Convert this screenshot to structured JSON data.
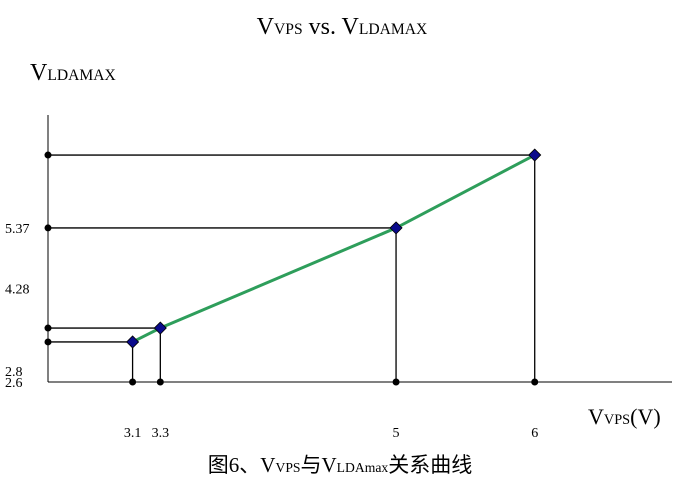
{
  "chart_data": {
    "type": "line",
    "title_parts": [
      "V",
      "VPS",
      " vs. V",
      "LDAMAX"
    ],
    "y_label_parts": [
      "V",
      "LDAMAX"
    ],
    "x_label_parts": [
      "V",
      "VPS",
      "(V)"
    ],
    "caption_parts": [
      "图6、V",
      "VPS",
      "与V",
      "LDAmax",
      "关系曲线"
    ],
    "x": [
      3.1,
      3.3,
      5,
      6
    ],
    "series": [
      {
        "color": "#2e9e5b",
        "marker_color": "#0a0a8c",
        "values": [
          3.32,
          3.57,
          5.37,
          6.68
        ]
      }
    ],
    "xlim": [
      2.49,
      6.99
    ],
    "ylim": [
      2.6,
      7.4
    ],
    "xticks": [
      3.1,
      3.3,
      5,
      6
    ],
    "yticks": [
      2.6,
      2.8,
      4.28,
      5.37
    ]
  }
}
